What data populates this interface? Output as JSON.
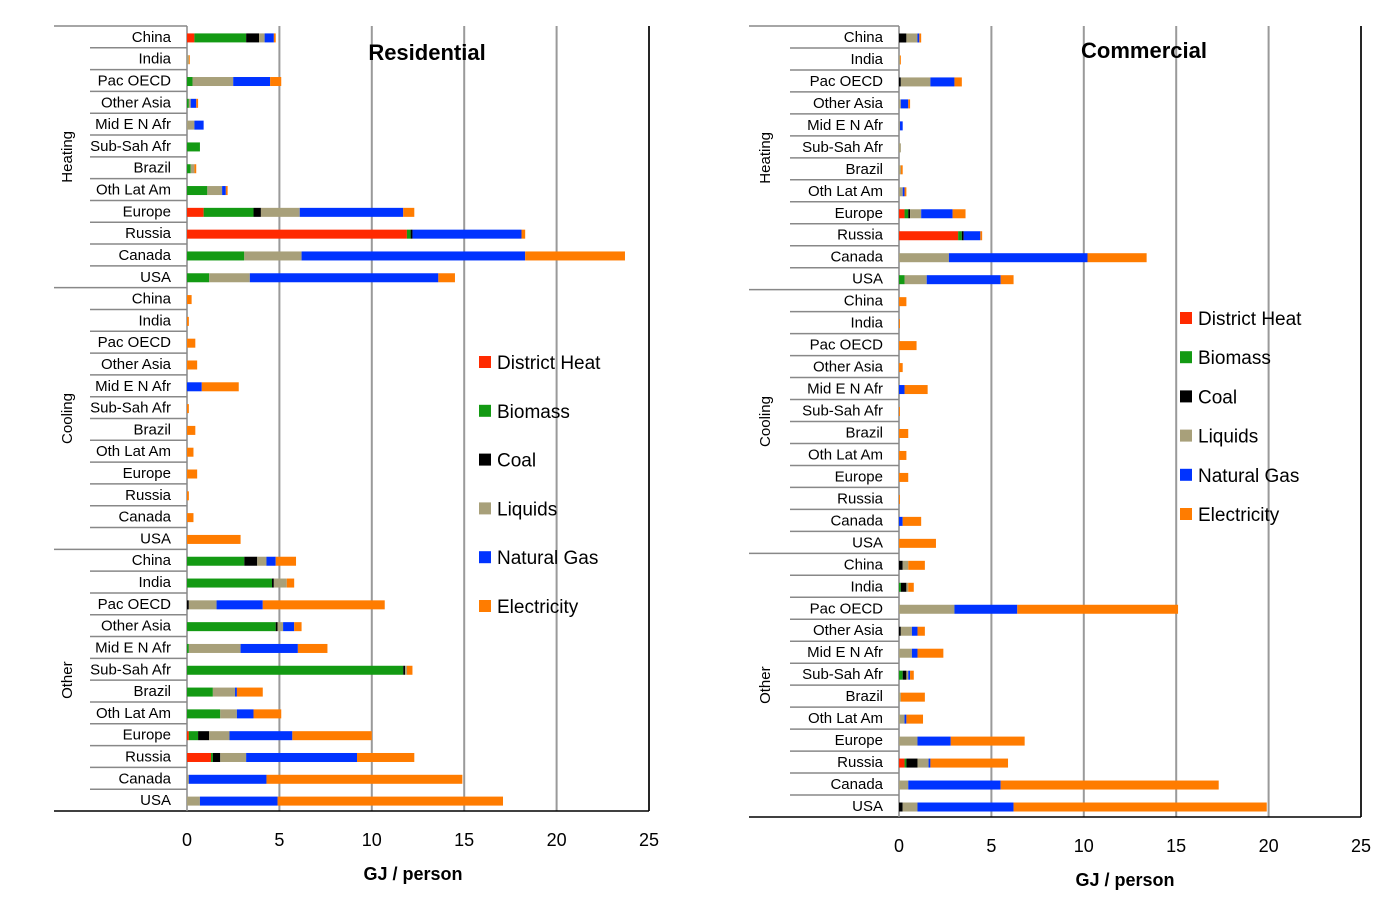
{
  "chart_data": [
    {
      "type": "bar",
      "orientation": "horizontal",
      "stacked": true,
      "title": "Residential",
      "xlabel": "GJ / person",
      "xlim": [
        0,
        25
      ],
      "xticks": [
        0,
        5,
        10,
        15,
        20,
        25
      ],
      "grid": true,
      "legend": "right",
      "series_names": [
        "District Heat",
        "Biomass",
        "Coal",
        "Liquids",
        "Natural Gas",
        "Electricity"
      ],
      "colors": [
        "#ff2a00",
        "#139a13",
        "#000000",
        "#a8a07a",
        "#0033ff",
        "#ff7c00"
      ],
      "groups": [
        {
          "name": "Heating",
          "rows": [
            {
              "category": "China",
              "values": [
                0.4,
                2.8,
                0.7,
                0.3,
                0.5,
                0.1
              ]
            },
            {
              "category": "India",
              "values": [
                0,
                0,
                0,
                0.1,
                0,
                0.05
              ]
            },
            {
              "category": "Pac OECD",
              "values": [
                0,
                0.3,
                0,
                2.2,
                2.0,
                0.6
              ]
            },
            {
              "category": "Other Asia",
              "values": [
                0,
                0.1,
                0,
                0.1,
                0.3,
                0.1
              ]
            },
            {
              "category": "Mid E N Afr",
              "values": [
                0,
                0,
                0,
                0.4,
                0.5,
                0
              ]
            },
            {
              "category": "Sub-Sah Afr",
              "values": [
                0,
                0.7,
                0,
                0,
                0,
                0
              ]
            },
            {
              "category": "Brazil",
              "values": [
                0,
                0.2,
                0,
                0.2,
                0,
                0.1
              ]
            },
            {
              "category": "Oth Lat Am",
              "values": [
                0,
                1.1,
                0,
                0.8,
                0.2,
                0.1
              ]
            },
            {
              "category": "Europe",
              "values": [
                0.9,
                2.7,
                0.4,
                2.1,
                5.6,
                0.6
              ]
            },
            {
              "category": "Russia",
              "values": [
                11.9,
                0.2,
                0.1,
                0,
                5.9,
                0.2
              ]
            },
            {
              "category": "Canada",
              "values": [
                0,
                3.1,
                0,
                3.1,
                12.1,
                5.4
              ]
            },
            {
              "category": "USA",
              "values": [
                0,
                1.2,
                0,
                2.2,
                10.2,
                0.9
              ]
            }
          ]
        },
        {
          "name": "Cooling",
          "rows": [
            {
              "category": "China",
              "values": [
                0,
                0,
                0,
                0,
                0,
                0.25
              ]
            },
            {
              "category": "India",
              "values": [
                0,
                0,
                0,
                0,
                0,
                0.1
              ]
            },
            {
              "category": "Pac OECD",
              "values": [
                0,
                0,
                0,
                0,
                0,
                0.45
              ]
            },
            {
              "category": "Other Asia",
              "values": [
                0,
                0,
                0,
                0,
                0,
                0.55
              ]
            },
            {
              "category": "Mid E N Afr",
              "values": [
                0,
                0,
                0,
                0,
                0.8,
                2.0
              ]
            },
            {
              "category": "Sub-Sah Afr",
              "values": [
                0,
                0,
                0,
                0,
                0,
                0.1
              ]
            },
            {
              "category": "Brazil",
              "values": [
                0,
                0,
                0,
                0,
                0,
                0.45
              ]
            },
            {
              "category": "Oth Lat Am",
              "values": [
                0,
                0,
                0,
                0,
                0,
                0.35
              ]
            },
            {
              "category": "Europe",
              "values": [
                0,
                0,
                0,
                0,
                0,
                0.55
              ]
            },
            {
              "category": "Russia",
              "values": [
                0,
                0,
                0,
                0,
                0,
                0.1
              ]
            },
            {
              "category": "Canada",
              "values": [
                0,
                0,
                0,
                0,
                0,
                0.35
              ]
            },
            {
              "category": "USA",
              "values": [
                0,
                0,
                0,
                0,
                0,
                2.9
              ]
            }
          ]
        },
        {
          "name": "Other",
          "rows": [
            {
              "category": "China",
              "values": [
                0,
                3.1,
                0.7,
                0.5,
                0.5,
                1.1
              ]
            },
            {
              "category": "India",
              "values": [
                0,
                4.6,
                0.1,
                0.7,
                0,
                0.4
              ]
            },
            {
              "category": "Pac OECD",
              "values": [
                0,
                0,
                0.1,
                1.5,
                2.5,
                6.6
              ]
            },
            {
              "category": "Other Asia",
              "values": [
                0,
                4.8,
                0.1,
                0.3,
                0.6,
                0.4
              ]
            },
            {
              "category": "Mid E N Afr",
              "values": [
                0,
                0.1,
                0,
                2.8,
                3.1,
                1.6
              ]
            },
            {
              "category": "Sub-Sah Afr",
              "values": [
                0,
                11.7,
                0.1,
                0.1,
                0,
                0.3
              ]
            },
            {
              "category": "Brazil",
              "values": [
                0,
                1.4,
                0,
                1.2,
                0.1,
                1.4
              ]
            },
            {
              "category": "Oth Lat Am",
              "values": [
                0,
                1.8,
                0,
                0.9,
                0.9,
                1.5
              ]
            },
            {
              "category": "Europe",
              "values": [
                0.1,
                0.5,
                0.6,
                1.1,
                3.4,
                4.3
              ]
            },
            {
              "category": "Russia",
              "values": [
                1.3,
                0.1,
                0.4,
                1.4,
                6.0,
                3.1
              ]
            },
            {
              "category": "Canada",
              "values": [
                0,
                0,
                0,
                0.1,
                4.2,
                10.6
              ]
            },
            {
              "category": "USA",
              "values": [
                0,
                0,
                0,
                0.7,
                4.2,
                12.2
              ]
            }
          ]
        }
      ]
    },
    {
      "type": "bar",
      "orientation": "horizontal",
      "stacked": true,
      "title": "Commercial",
      "xlabel": "GJ / person",
      "xlim": [
        0,
        25
      ],
      "xticks": [
        0,
        5,
        10,
        15,
        20,
        25
      ],
      "grid": true,
      "legend": "right",
      "series_names": [
        "District Heat",
        "Biomass",
        "Coal",
        "Liquids",
        "Natural Gas",
        "Electricity"
      ],
      "colors": [
        "#ff2a00",
        "#139a13",
        "#000000",
        "#a8a07a",
        "#0033ff",
        "#ff7c00"
      ],
      "groups": [
        {
          "name": "Heating",
          "rows": [
            {
              "category": "China",
              "values": [
                0,
                0,
                0.4,
                0.6,
                0.1,
                0.1
              ]
            },
            {
              "category": "India",
              "values": [
                0,
                0,
                0,
                0.05,
                0,
                0.05
              ]
            },
            {
              "category": "Pac OECD",
              "values": [
                0,
                0,
                0.1,
                1.6,
                1.3,
                0.4
              ]
            },
            {
              "category": "Other Asia",
              "values": [
                0,
                0,
                0,
                0.1,
                0.4,
                0.1
              ]
            },
            {
              "category": "Mid E N Afr",
              "values": [
                0,
                0,
                0,
                0.05,
                0.15,
                0
              ]
            },
            {
              "category": "Sub-Sah Afr",
              "values": [
                0,
                0,
                0,
                0.1,
                0,
                0
              ]
            },
            {
              "category": "Brazil",
              "values": [
                0,
                0,
                0,
                0.1,
                0,
                0.1
              ]
            },
            {
              "category": "Oth Lat Am",
              "values": [
                0,
                0,
                0,
                0.2,
                0.1,
                0.1
              ]
            },
            {
              "category": "Europe",
              "values": [
                0.3,
                0.2,
                0.1,
                0.6,
                1.7,
                0.7
              ]
            },
            {
              "category": "Russia",
              "values": [
                3.2,
                0.2,
                0.1,
                0,
                0.9,
                0.1
              ]
            },
            {
              "category": "Canada",
              "values": [
                0,
                0,
                0,
                2.7,
                7.5,
                3.2
              ]
            },
            {
              "category": "USA",
              "values": [
                0,
                0.3,
                0,
                1.2,
                4.0,
                0.7
              ]
            }
          ]
        },
        {
          "name": "Cooling",
          "rows": [
            {
              "category": "China",
              "values": [
                0,
                0,
                0,
                0,
                0,
                0.4
              ]
            },
            {
              "category": "India",
              "values": [
                0,
                0,
                0,
                0,
                0,
                0.05
              ]
            },
            {
              "category": "Pac OECD",
              "values": [
                0,
                0,
                0,
                0,
                0,
                0.95
              ]
            },
            {
              "category": "Other Asia",
              "values": [
                0,
                0,
                0,
                0,
                0,
                0.2
              ]
            },
            {
              "category": "Mid E N Afr",
              "values": [
                0,
                0,
                0,
                0,
                0.3,
                1.25
              ]
            },
            {
              "category": "Sub-Sah Afr",
              "values": [
                0,
                0,
                0,
                0,
                0,
                0.05
              ]
            },
            {
              "category": "Brazil",
              "values": [
                0,
                0,
                0,
                0,
                0,
                0.5
              ]
            },
            {
              "category": "Oth Lat Am",
              "values": [
                0,
                0,
                0,
                0,
                0,
                0.4
              ]
            },
            {
              "category": "Europe",
              "values": [
                0,
                0,
                0,
                0,
                0,
                0.5
              ]
            },
            {
              "category": "Russia",
              "values": [
                0,
                0,
                0,
                0,
                0,
                0.05
              ]
            },
            {
              "category": "Canada",
              "values": [
                0,
                0,
                0,
                0,
                0.2,
                1.0
              ]
            },
            {
              "category": "USA",
              "values": [
                0,
                0,
                0,
                0,
                0,
                2.0
              ]
            }
          ]
        },
        {
          "name": "Other",
          "rows": [
            {
              "category": "China",
              "values": [
                0,
                0,
                0.2,
                0.3,
                0,
                0.9
              ]
            },
            {
              "category": "India",
              "values": [
                0,
                0.1,
                0.3,
                0.1,
                0,
                0.3
              ]
            },
            {
              "category": "Pac OECD",
              "values": [
                0,
                0,
                0,
                3.0,
                3.4,
                8.7
              ]
            },
            {
              "category": "Other Asia",
              "values": [
                0,
                0,
                0.1,
                0.6,
                0.3,
                0.4
              ]
            },
            {
              "category": "Mid E N Afr",
              "values": [
                0,
                0,
                0,
                0.7,
                0.3,
                1.4
              ]
            },
            {
              "category": "Sub-Sah Afr",
              "values": [
                0,
                0.2,
                0.2,
                0.1,
                0.1,
                0.2
              ]
            },
            {
              "category": "Brazil",
              "values": [
                0,
                0,
                0,
                0.1,
                0,
                1.3
              ]
            },
            {
              "category": "Oth Lat Am",
              "values": [
                0,
                0,
                0,
                0.3,
                0.1,
                0.9
              ]
            },
            {
              "category": "Europe",
              "values": [
                0,
                0,
                0,
                1.0,
                1.8,
                4.0
              ]
            },
            {
              "category": "Russia",
              "values": [
                0.3,
                0.1,
                0.6,
                0.6,
                0.1,
                4.2
              ]
            },
            {
              "category": "Canada",
              "values": [
                0,
                0,
                0,
                0.5,
                5.0,
                11.8
              ]
            },
            {
              "category": "USA",
              "values": [
                0,
                0,
                0.2,
                0.8,
                5.2,
                13.7
              ]
            }
          ]
        }
      ]
    }
  ]
}
